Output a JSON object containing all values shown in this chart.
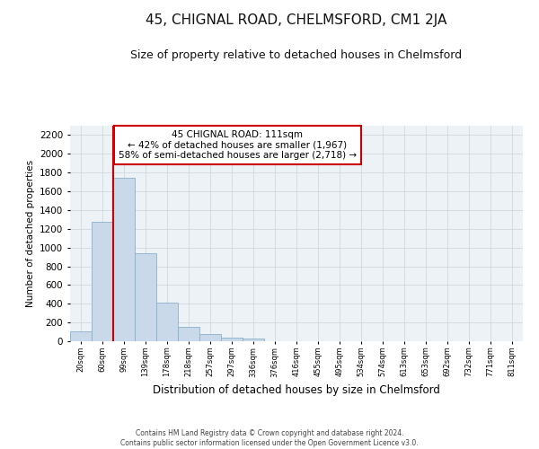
{
  "title": "45, CHIGNAL ROAD, CHELMSFORD, CM1 2JA",
  "subtitle": "Size of property relative to detached houses in Chelmsford",
  "xlabel": "Distribution of detached houses by size in Chelmsford",
  "ylabel": "Number of detached properties",
  "footer_line1": "Contains HM Land Registry data © Crown copyright and database right 2024.",
  "footer_line2": "Contains public sector information licensed under the Open Government Licence v3.0.",
  "bin_labels": [
    "20sqm",
    "60sqm",
    "99sqm",
    "139sqm",
    "178sqm",
    "218sqm",
    "257sqm",
    "297sqm",
    "336sqm",
    "376sqm",
    "416sqm",
    "455sqm",
    "495sqm",
    "534sqm",
    "574sqm",
    "613sqm",
    "653sqm",
    "692sqm",
    "732sqm",
    "771sqm",
    "811sqm"
  ],
  "bar_values": [
    110,
    1270,
    1740,
    940,
    415,
    155,
    75,
    35,
    25,
    0,
    0,
    0,
    0,
    0,
    0,
    0,
    0,
    0,
    0,
    0,
    0
  ],
  "bar_color": "#c9d9ea",
  "bar_edge_color": "#8ab0cc",
  "vline_x_index": 2,
  "vline_color": "#cc0000",
  "ylim": [
    0,
    2300
  ],
  "yticks": [
    0,
    200,
    400,
    600,
    800,
    1000,
    1200,
    1400,
    1600,
    1800,
    2000,
    2200
  ],
  "annotation_text": "45 CHIGNAL ROAD: 111sqm\n← 42% of detached houses are smaller (1,967)\n58% of semi-detached houses are larger (2,718) →",
  "annotation_box_color": "#ffffff",
  "annotation_box_edge_color": "#cc0000",
  "grid_color": "#d0d8e0",
  "bg_color": "#edf2f7",
  "title_fontsize": 11,
  "subtitle_fontsize": 9
}
